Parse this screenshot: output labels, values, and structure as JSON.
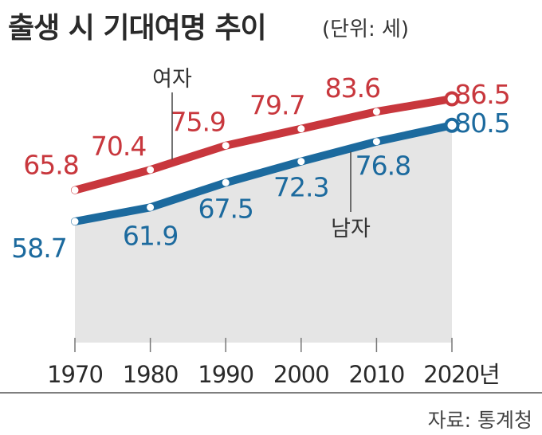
{
  "title": "출생 시 기대여명 추이",
  "unit": "(단위: 세)",
  "source": "자료: 통계청",
  "colors": {
    "female": "#c8373d",
    "male": "#1c6a9e",
    "area": "#e5e5e5"
  },
  "chart_data": {
    "type": "line",
    "x": [
      1970,
      1980,
      1990,
      2000,
      2010,
      2020
    ],
    "x_tick_labels": [
      "1970",
      "1980",
      "1990",
      "2000",
      "2010",
      "2020년"
    ],
    "ylim": [
      45,
      95
    ],
    "series": [
      {
        "name": "여자",
        "values": [
          65.8,
          70.4,
          75.9,
          79.7,
          83.6,
          86.5
        ],
        "labels": [
          "65.8",
          "70.4",
          "75.9",
          "79.7",
          "83.6",
          "86.5"
        ]
      },
      {
        "name": "남자",
        "values": [
          58.7,
          61.9,
          67.5,
          72.3,
          76.8,
          80.5
        ],
        "labels": [
          "58.7",
          "61.9",
          "67.5",
          "72.3",
          "76.8",
          "80.5"
        ]
      }
    ]
  }
}
